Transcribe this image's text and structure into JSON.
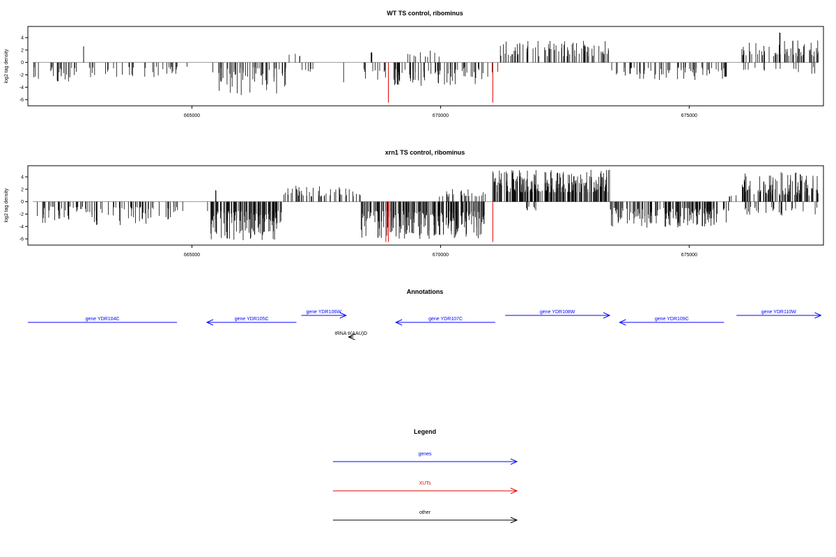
{
  "chart_data": [
    {
      "type": "bar",
      "title": "WT TS control, ribominus",
      "ylabel": "log2 tag density",
      "xlim": [
        661700,
        677700
      ],
      "ylim": [
        -7,
        5.8
      ],
      "yticks": [
        -6,
        -4,
        -2,
        0,
        2,
        4
      ],
      "xticks": [
        665000,
        670000,
        675000
      ],
      "segments": [
        {
          "from": 661800,
          "to": 663050,
          "sign": -1,
          "dens": 0.35,
          "min": 0.8,
          "max": 3.2
        },
        {
          "from": 662800,
          "to": 662830,
          "sign": 1,
          "dens": 1,
          "min": 2.6,
          "max": 2.6
        },
        {
          "from": 663100,
          "to": 664900,
          "sign": -1,
          "dens": 0.22,
          "min": 0.7,
          "max": 2.6
        },
        {
          "from": 665400,
          "to": 666900,
          "sign": -1,
          "dens": 0.55,
          "min": 0.8,
          "max": 5.5
        },
        {
          "from": 666900,
          "to": 667200,
          "sign": 1,
          "dens": 0.2,
          "min": 1.0,
          "max": 1.6
        },
        {
          "from": 667100,
          "to": 667500,
          "sign": -1,
          "dens": 0.2,
          "min": 1.0,
          "max": 2.2
        },
        {
          "from": 668050,
          "to": 668070,
          "sign": -1,
          "dens": 1,
          "min": 3.2,
          "max": 3.2
        },
        {
          "from": 668600,
          "to": 668650,
          "sign": 1,
          "dens": 1,
          "min": 1.6,
          "max": 1.6
        },
        {
          "from": 668400,
          "to": 668950,
          "sign": -1,
          "dens": 0.25,
          "min": 1.0,
          "max": 3.0
        },
        {
          "from": 669050,
          "to": 671050,
          "sign": -1,
          "dens": 0.5,
          "min": 0.8,
          "max": 3.8
        },
        {
          "from": 669300,
          "to": 670000,
          "sign": 1,
          "dens": 0.2,
          "min": 0.8,
          "max": 2.0
        },
        {
          "from": 671150,
          "to": 673400,
          "sign": 1,
          "dens": 0.5,
          "min": 1.0,
          "max": 3.5
        },
        {
          "from": 673400,
          "to": 675700,
          "sign": -1,
          "dens": 0.4,
          "min": 0.8,
          "max": 3.0
        },
        {
          "from": 675700,
          "to": 675750,
          "sign": -1,
          "dens": 1,
          "min": 2.3,
          "max": 2.3
        },
        {
          "from": 676050,
          "to": 677600,
          "sign": 1,
          "dens": 0.55,
          "min": 1.0,
          "max": 3.6
        },
        {
          "from": 676800,
          "to": 676830,
          "sign": 1,
          "dens": 1,
          "min": 4.8,
          "max": 4.8
        },
        {
          "from": 676000,
          "to": 677600,
          "sign": -1,
          "dens": 0.12,
          "min": 0.8,
          "max": 2.0
        }
      ],
      "highlights": [
        {
          "x": 668950,
          "y": -6.5,
          "color": "#e00000"
        },
        {
          "x": 671050,
          "y": -6.5,
          "color": "#e00000"
        },
        {
          "x": 671150,
          "y": -1.5,
          "color": "#e00000"
        }
      ]
    },
    {
      "type": "bar",
      "title": "xrn1 TS control, ribominus",
      "ylabel": "log2 tag density",
      "xlim": [
        661700,
        677700
      ],
      "ylim": [
        -7,
        5.8
      ],
      "yticks": [
        -6,
        -4,
        -2,
        0,
        2,
        4
      ],
      "xticks": [
        665000,
        670000,
        675000
      ],
      "segments": [
        {
          "from": 661800,
          "to": 664850,
          "sign": -1,
          "dens": 0.45,
          "min": 0.8,
          "max": 3.8
        },
        {
          "from": 665300,
          "to": 666800,
          "sign": -1,
          "dens": 1.2,
          "min": 1.5,
          "max": 6.3
        },
        {
          "from": 665400,
          "to": 665500,
          "sign": 1,
          "dens": 0.3,
          "min": 1.0,
          "max": 2.2
        },
        {
          "from": 666800,
          "to": 668400,
          "sign": 1,
          "dens": 0.45,
          "min": 0.8,
          "max": 2.6
        },
        {
          "from": 668400,
          "to": 670900,
          "sign": -1,
          "dens": 1.2,
          "min": 1.5,
          "max": 6.0
        },
        {
          "from": 669900,
          "to": 670900,
          "sign": 1,
          "dens": 0.35,
          "min": 0.8,
          "max": 2.2
        },
        {
          "from": 671050,
          "to": 673400,
          "sign": 1,
          "dens": 1.3,
          "min": 1.5,
          "max": 5.2
        },
        {
          "from": 671700,
          "to": 672400,
          "sign": -1,
          "dens": 0.15,
          "min": 0.8,
          "max": 1.6
        },
        {
          "from": 673400,
          "to": 675800,
          "sign": -1,
          "dens": 0.9,
          "min": 1.0,
          "max": 4.2
        },
        {
          "from": 675800,
          "to": 676050,
          "sign": 1,
          "dens": 0.2,
          "min": 0.8,
          "max": 1.2
        },
        {
          "from": 676050,
          "to": 677600,
          "sign": 1,
          "dens": 1.0,
          "min": 1.0,
          "max": 4.8
        },
        {
          "from": 676050,
          "to": 677600,
          "sign": -1,
          "dens": 0.25,
          "min": 0.8,
          "max": 2.5
        }
      ],
      "highlights": [
        {
          "x": 668900,
          "y": -6.5,
          "color": "#e00000"
        },
        {
          "x": 668950,
          "y": -6.5,
          "color": "#e00000"
        },
        {
          "x": 671050,
          "y": -6.5,
          "color": "#e00000"
        }
      ]
    }
  ],
  "annotations": {
    "title": "Annotations",
    "features": [
      {
        "label": "gene YDR104C",
        "start": 661700,
        "end": 664700,
        "strand": "-",
        "row": 0,
        "color": "#0000ff",
        "arrow": false
      },
      {
        "label": "gene YDR105C",
        "start": 665300,
        "end": 667100,
        "strand": "-",
        "row": 0,
        "color": "#0000ff",
        "arrow": true
      },
      {
        "label": "gene YDR106W",
        "start": 667200,
        "end": 668100,
        "strand": "+",
        "row": 1,
        "color": "#0000ff",
        "arrow": true
      },
      {
        "label": "tRNA tI(AAU)D",
        "start": 668150,
        "end": 668250,
        "strand": "-",
        "row": -1,
        "color": "#000000",
        "arrow": true
      },
      {
        "label": "gene YDR107C",
        "start": 669100,
        "end": 671100,
        "strand": "-",
        "row": 0,
        "color": "#0000ff",
        "arrow": true
      },
      {
        "label": "gene YDR108W",
        "start": 671300,
        "end": 673400,
        "strand": "+",
        "row": 1,
        "color": "#0000ff",
        "arrow": true
      },
      {
        "label": "gene YDR109C",
        "start": 673600,
        "end": 675700,
        "strand": "-",
        "row": 0,
        "color": "#0000ff",
        "arrow": true
      },
      {
        "label": "gene YDR110W",
        "start": 675950,
        "end": 677650,
        "strand": "+",
        "row": 1,
        "color": "#0000ff",
        "arrow": true
      }
    ]
  },
  "legend": {
    "title": "Legend",
    "items": [
      {
        "label": "genes",
        "color": "#0000ff"
      },
      {
        "label": "XUTs",
        "color": "#e00000"
      },
      {
        "label": "other",
        "color": "#000000"
      }
    ]
  }
}
